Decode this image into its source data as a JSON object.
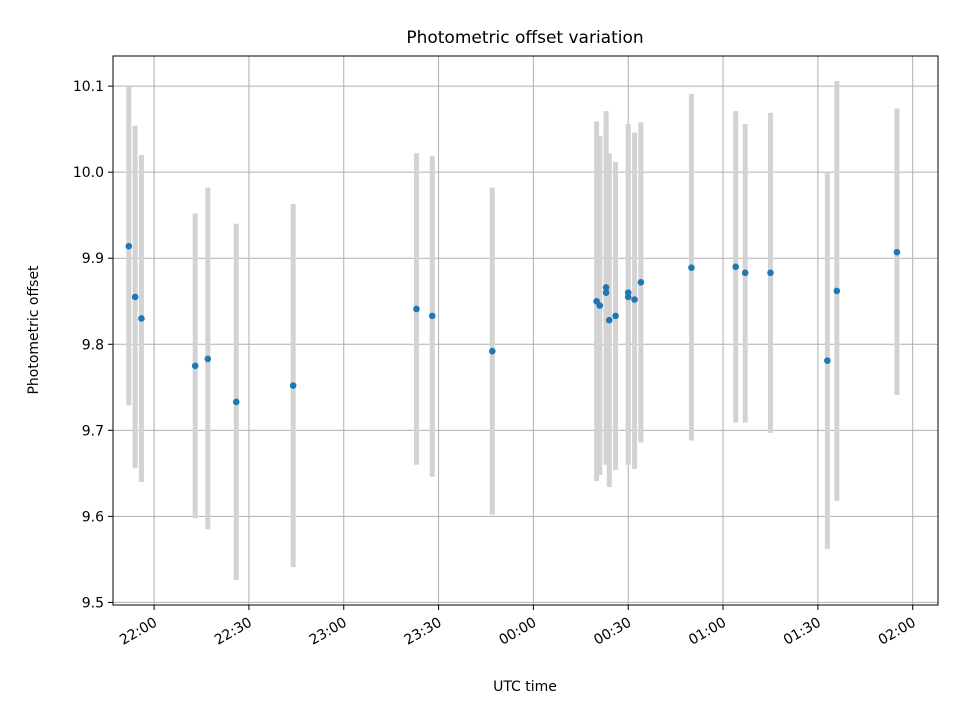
{
  "chart_data": {
    "type": "scatter",
    "title": "Photometric offset variation",
    "xlabel": "UTC time",
    "ylabel": "Photometric offset",
    "grid": true,
    "x_tick_labels": [
      "22:00",
      "22:30",
      "23:00",
      "23:30",
      "00:00",
      "00:30",
      "01:00",
      "01:30",
      "02:00"
    ],
    "x_ticks": [
      "22:00",
      "22:30",
      "23:00",
      "23:30",
      "00:00",
      "00:30",
      "01:00",
      "01:30",
      "02:00"
    ],
    "xlim": [
      "21:47",
      "02:08"
    ],
    "y_tick_labels": [
      "9.5",
      "9.6",
      "9.7",
      "9.8",
      "9.9",
      "10.0",
      "10.1"
    ],
    "y_ticks": [
      9.5,
      9.6,
      9.7,
      9.8,
      9.9,
      10.0,
      10.1
    ],
    "ylim": [
      9.497,
      10.135
    ],
    "colors": {
      "point": "#1f77b4",
      "errorbar": "#d3d3d3",
      "grid": "#b0b0b0"
    },
    "series": [
      {
        "points": [
          {
            "x": "21:52",
            "y": 9.914,
            "yerr_low": 9.729,
            "yerr_high": 10.1
          },
          {
            "x": "21:54",
            "y": 9.855,
            "yerr_low": 9.656,
            "yerr_high": 10.054
          },
          {
            "x": "21:56",
            "y": 9.83,
            "yerr_low": 9.64,
            "yerr_high": 10.02
          },
          {
            "x": "22:13",
            "y": 9.775,
            "yerr_low": 9.598,
            "yerr_high": 9.952
          },
          {
            "x": "22:17",
            "y": 9.783,
            "yerr_low": 9.585,
            "yerr_high": 9.982
          },
          {
            "x": "22:26",
            "y": 9.733,
            "yerr_low": 9.526,
            "yerr_high": 9.94
          },
          {
            "x": "22:44",
            "y": 9.752,
            "yerr_low": 9.541,
            "yerr_high": 9.963
          },
          {
            "x": "23:23",
            "y": 9.841,
            "yerr_low": 9.66,
            "yerr_high": 10.022
          },
          {
            "x": "23:28",
            "y": 9.833,
            "yerr_low": 9.646,
            "yerr_high": 10.019
          },
          {
            "x": "23:47",
            "y": 9.792,
            "yerr_low": 9.602,
            "yerr_high": 9.982
          },
          {
            "x": "00:20",
            "y": 9.85,
            "yerr_low": 9.641,
            "yerr_high": 10.059
          },
          {
            "x": "00:21",
            "y": 9.845,
            "yerr_low": 9.648,
            "yerr_high": 10.042
          },
          {
            "x": "00:23",
            "y": 9.866,
            "yerr_low": 9.662,
            "yerr_high": 10.071
          },
          {
            "x": "00:23",
            "y": 9.86,
            "yerr_low": 9.66,
            "yerr_high": 10.06
          },
          {
            "x": "00:24",
            "y": 9.828,
            "yerr_low": 9.634,
            "yerr_high": 10.022
          },
          {
            "x": "00:26",
            "y": 9.833,
            "yerr_low": 9.654,
            "yerr_high": 10.012
          },
          {
            "x": "00:30",
            "y": 9.855,
            "yerr_low": 9.66,
            "yerr_high": 10.041
          },
          {
            "x": "00:30",
            "y": 9.86,
            "yerr_low": 9.665,
            "yerr_high": 10.056
          },
          {
            "x": "00:32",
            "y": 9.852,
            "yerr_low": 9.655,
            "yerr_high": 10.046
          },
          {
            "x": "00:34",
            "y": 9.872,
            "yerr_low": 9.686,
            "yerr_high": 10.058
          },
          {
            "x": "00:50",
            "y": 9.889,
            "yerr_low": 9.688,
            "yerr_high": 10.091
          },
          {
            "x": "01:04",
            "y": 9.89,
            "yerr_low": 9.709,
            "yerr_high": 10.071
          },
          {
            "x": "01:07",
            "y": 9.883,
            "yerr_low": 9.709,
            "yerr_high": 10.056
          },
          {
            "x": "01:15",
            "y": 9.883,
            "yerr_low": 9.697,
            "yerr_high": 10.069
          },
          {
            "x": "01:33",
            "y": 9.781,
            "yerr_low": 9.562,
            "yerr_high": 10.0
          },
          {
            "x": "01:36",
            "y": 9.862,
            "yerr_low": 9.618,
            "yerr_high": 10.106
          },
          {
            "x": "01:55",
            "y": 9.907,
            "yerr_low": 9.741,
            "yerr_high": 10.074
          }
        ]
      }
    ]
  }
}
